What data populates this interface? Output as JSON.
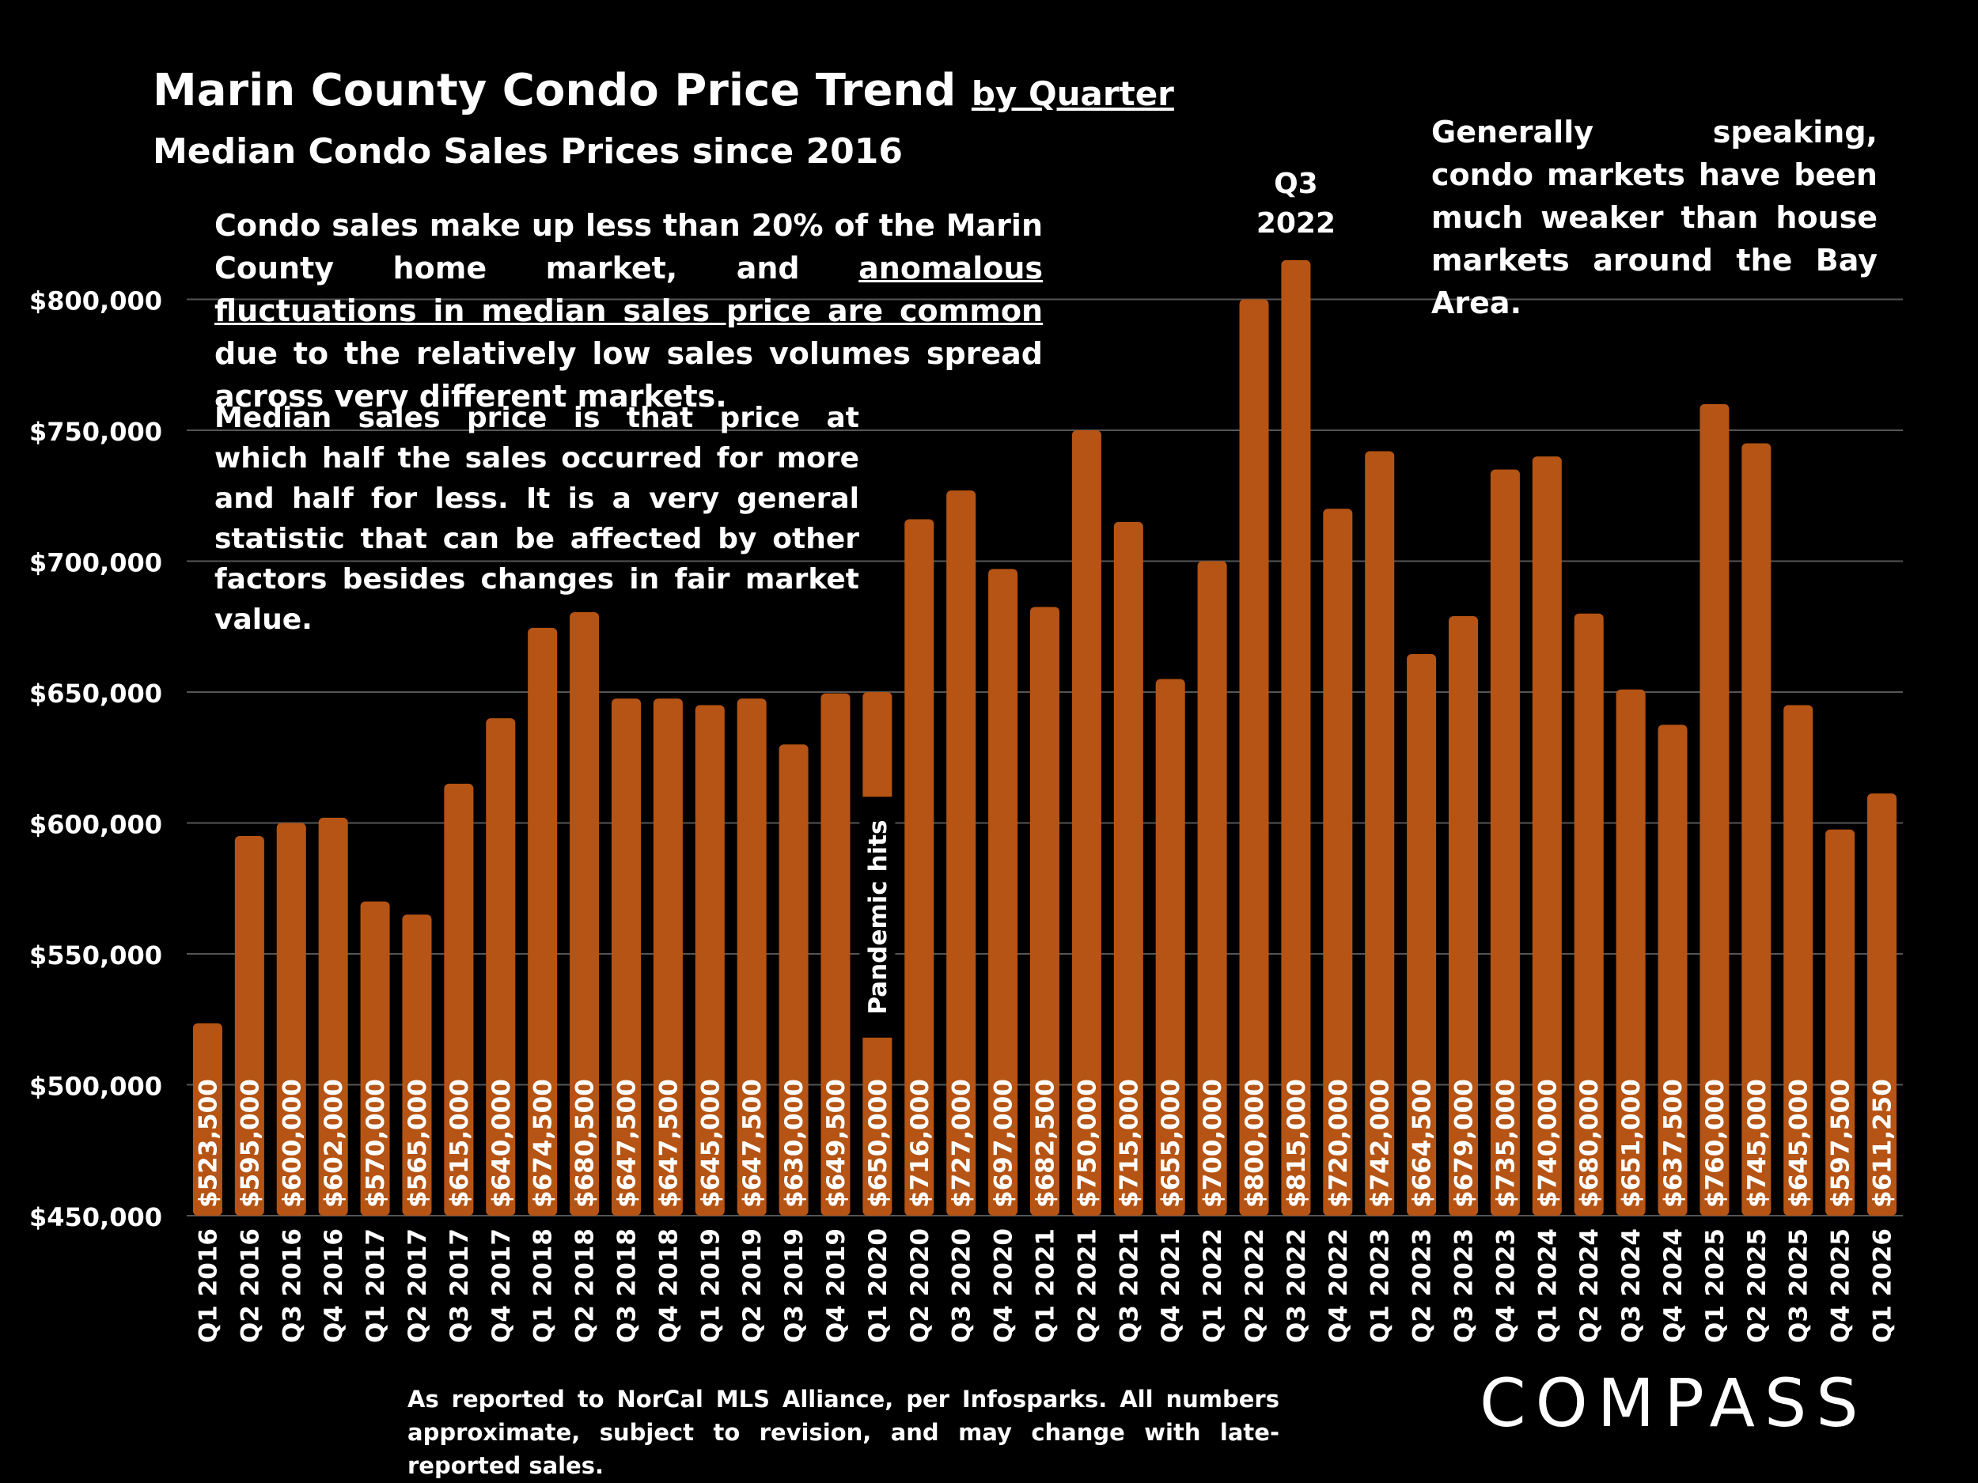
{
  "header": {
    "title": "Marin County Condo Price Trend",
    "title_suffix": "by Quarter",
    "subtitle": "Median Condo Sales Prices since 2016"
  },
  "notes": {
    "note1_a": "Condo sales make up less than 20% of the Marin County home market, and ",
    "note1_u": "anomalous fluctuations in median sales price are common",
    "note1_b": " due to the relatively low sales volumes spread across very different markets.",
    "note2": "Median sales price is that price at which half the sales occurred for more and half for less. It is a very general statistic that can be affected by other factors besides changes in fair market value.",
    "note3": "Generally speaking, condo markets have been much weaker than house markets around the Bay Area."
  },
  "footer": "As reported to NorCal MLS Alliance, per Infosparks. All numbers approximate, subject to revision, and may change with late-reported sales.",
  "logo": "COMPASS",
  "colors": {
    "bar": "#b55414",
    "background": "#000000",
    "grid": "#555555",
    "text": "#ffffff"
  },
  "chart_data": {
    "type": "bar",
    "title": "Marin County Condo Price Trend by Quarter",
    "subtitle": "Median Condo Sales Prices since 2016",
    "xlabel": "",
    "ylabel": "",
    "ylim": [
      450000,
      830000
    ],
    "yticks": [
      450000,
      500000,
      550000,
      600000,
      650000,
      700000,
      750000,
      800000
    ],
    "ytick_labels": [
      "$450,000",
      "$500,000",
      "$550,000",
      "$600,000",
      "$650,000",
      "$700,000",
      "$750,000",
      "$800,000"
    ],
    "grid": true,
    "categories": [
      "Q1 2016",
      "Q2 2016",
      "Q3 2016",
      "Q4 2016",
      "Q1 2017",
      "Q2 2017",
      "Q3 2017",
      "Q4 2017",
      "Q1 2018",
      "Q2 2018",
      "Q3 2018",
      "Q4 2018",
      "Q1 2019",
      "Q2 2019",
      "Q3 2019",
      "Q4 2019",
      "Q1 2020",
      "Q2 2020",
      "Q3 2020",
      "Q4 2020",
      "Q1 2021",
      "Q2 2021",
      "Q3 2021",
      "Q4 2021",
      "Q1 2022",
      "Q2 2022",
      "Q3 2022",
      "Q4 2022",
      "Q1 2023",
      "Q2 2023",
      "Q3 2023",
      "Q4 2023",
      "Q1 2024",
      "Q2 2024",
      "Q3 2024",
      "Q4 2024",
      "Q1 2025",
      "Q2 2025",
      "Q3 2025",
      "Q4 2025",
      "Q1 2026"
    ],
    "values": [
      523500,
      595000,
      600000,
      602000,
      570000,
      565000,
      615000,
      640000,
      674500,
      680500,
      647500,
      647500,
      645000,
      647500,
      630000,
      649500,
      650000,
      716000,
      727000,
      697000,
      682500,
      750000,
      715000,
      655000,
      700000,
      800000,
      815000,
      720000,
      742000,
      664500,
      679000,
      735000,
      740000,
      680000,
      651000,
      637500,
      760000,
      745000,
      645000,
      597500,
      611250
    ],
    "value_labels": [
      "$523,500",
      "$595,000",
      "$600,000",
      "$602,000",
      "$570,000",
      "$565,000",
      "$615,000",
      "$640,000",
      "$674,500",
      "$680,500",
      "$647,500",
      "$647,500",
      "$645,000",
      "$647,500",
      "$630,000",
      "$649,500",
      "$650,000",
      "$716,000",
      "$727,000",
      "$697,000",
      "$682,500",
      "$750,000",
      "$715,000",
      "$655,000",
      "$700,000",
      "$800,000",
      "$815,000",
      "$720,000",
      "$742,000",
      "$664,500",
      "$679,000",
      "$735,000",
      "$740,000",
      "$680,000",
      "$651,000",
      "$637,500",
      "$760,000",
      "$745,000",
      "$645,000",
      "$597,500",
      "$611,250"
    ],
    "annotations": [
      {
        "category": "Q1 2020",
        "text": "Pandemic hits"
      },
      {
        "category": "Q3 2022",
        "text_line1": "Q3",
        "text_line2": "2022"
      }
    ]
  }
}
